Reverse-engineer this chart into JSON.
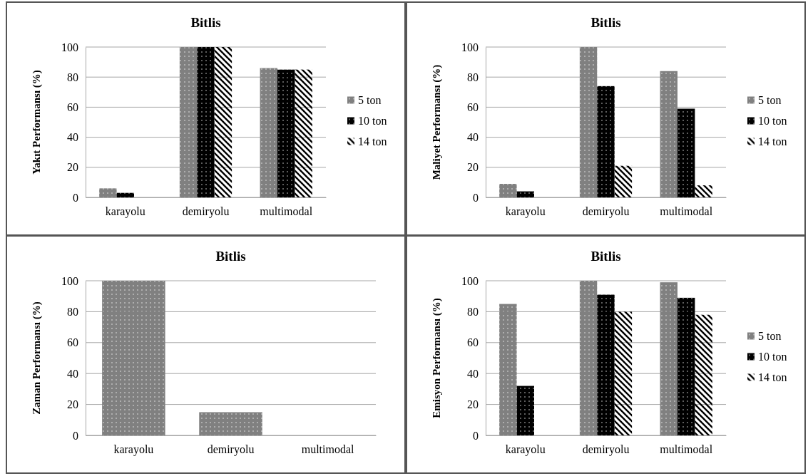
{
  "chart_data": [
    {
      "type": "bar",
      "title": "Bitlis",
      "ylabel": "Yakıt Performansı (%)",
      "categories": [
        "karayolu",
        "demiryolu",
        "multimodal"
      ],
      "series": [
        {
          "name": "5 ton",
          "color": "#808080",
          "values": [
            6,
            100,
            86
          ]
        },
        {
          "name": "10 ton",
          "color": "#000000",
          "values": [
            3,
            100,
            85
          ]
        },
        {
          "name": "14 ton",
          "color": "#000000",
          "values": [
            0,
            100,
            85
          ]
        }
      ],
      "ylim": [
        0,
        100
      ],
      "yticks": [
        0,
        20,
        40,
        60,
        80,
        100
      ],
      "grid": "y",
      "legend": "right"
    },
    {
      "type": "bar",
      "title": "Bitlis",
      "ylabel": "Maliyet Performansı (%)",
      "categories": [
        "karayolu",
        "demiryolu",
        "multimodal"
      ],
      "series": [
        {
          "name": "5 ton",
          "color": "#808080",
          "values": [
            9,
            100,
            84
          ]
        },
        {
          "name": "10 ton",
          "color": "#000000",
          "values": [
            4,
            74,
            59
          ]
        },
        {
          "name": "14 ton",
          "color": "#000000",
          "values": [
            0,
            21,
            8
          ]
        }
      ],
      "ylim": [
        0,
        100
      ],
      "yticks": [
        0,
        20,
        40,
        60,
        80,
        100
      ],
      "grid": "y",
      "legend": "right"
    },
    {
      "type": "bar",
      "title": "Bitlis",
      "ylabel": "Zaman Performansı (%)",
      "categories": [
        "karayolu",
        "demiryolu",
        "multimodal"
      ],
      "series": [
        {
          "color": "#808080",
          "values": [
            100,
            15,
            0
          ]
        }
      ],
      "ylim": [
        0,
        100
      ],
      "yticks": [
        0,
        20,
        40,
        60,
        80,
        100
      ],
      "grid": "y"
    },
    {
      "type": "bar",
      "title": "Bitlis",
      "ylabel": "Emisyon Performansı (%)",
      "categories": [
        "karayolu",
        "demiryolu",
        "multimodal"
      ],
      "series": [
        {
          "name": "5 ton",
          "color": "#808080",
          "values": [
            85,
            100,
            99
          ]
        },
        {
          "name": "10 ton",
          "color": "#000000",
          "values": [
            32,
            91,
            89
          ]
        },
        {
          "name": "14 ton",
          "color": "#000000",
          "values": [
            0,
            80,
            78
          ]
        }
      ],
      "ylim": [
        0,
        100
      ],
      "yticks": [
        0,
        20,
        40,
        60,
        80,
        100
      ],
      "grid": "y",
      "legend": "right"
    }
  ]
}
